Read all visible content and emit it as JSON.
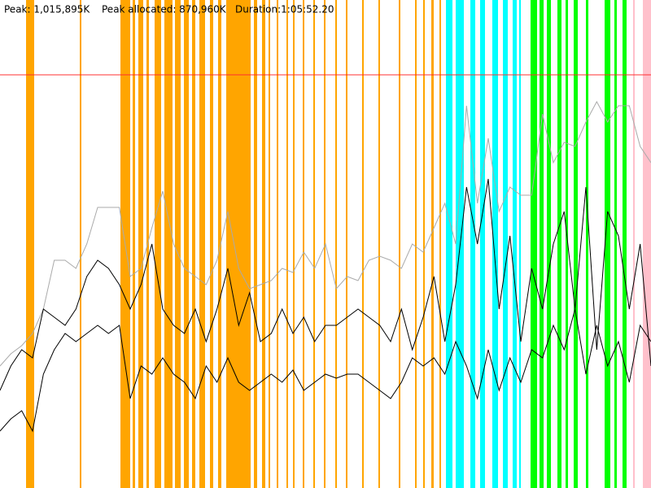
{
  "chart_data": {
    "type": "line",
    "peak": {
      "value": 1015895,
      "label": "Peak: 1,015,895K"
    },
    "peak_color": "#ff3030",
    "peak_allocated": "Peak allocated: 870,960K",
    "duration": "Duration:1:05:52.20",
    "ylim": [
      0,
      1200000
    ],
    "xlim": [
      0,
      800
    ],
    "bands": [
      {
        "start": 32,
        "end": 42,
        "color": "#ffa500"
      },
      {
        "start": 98,
        "end": 100,
        "color": "#ffa500"
      },
      {
        "start": 148,
        "end": 160,
        "color": "#ffa500"
      },
      {
        "start": 163,
        "end": 166,
        "color": "#ffa500"
      },
      {
        "start": 170,
        "end": 176,
        "color": "#ffa500"
      },
      {
        "start": 180,
        "end": 183,
        "color": "#ffa500"
      },
      {
        "start": 190,
        "end": 198,
        "color": "#ffa500"
      },
      {
        "start": 202,
        "end": 212,
        "color": "#ffa500"
      },
      {
        "start": 215,
        "end": 222,
        "color": "#ffa500"
      },
      {
        "start": 226,
        "end": 232,
        "color": "#ffa500"
      },
      {
        "start": 236,
        "end": 240,
        "color": "#ffa500"
      },
      {
        "start": 245,
        "end": 252,
        "color": "#ffa500"
      },
      {
        "start": 258,
        "end": 262,
        "color": "#ffa500"
      },
      {
        "start": 268,
        "end": 272,
        "color": "#ffa500"
      },
      {
        "start": 278,
        "end": 308,
        "color": "#ffa500"
      },
      {
        "start": 312,
        "end": 316,
        "color": "#ffa500"
      },
      {
        "start": 322,
        "end": 326,
        "color": "#ffa500"
      },
      {
        "start": 330,
        "end": 332,
        "color": "#ffa500"
      },
      {
        "start": 340,
        "end": 342,
        "color": "#ffa500"
      },
      {
        "start": 352,
        "end": 354,
        "color": "#ffa500"
      },
      {
        "start": 360,
        "end": 362,
        "color": "#ffa500"
      },
      {
        "start": 372,
        "end": 374,
        "color": "#ffa500"
      },
      {
        "start": 385,
        "end": 387,
        "color": "#ffa500"
      },
      {
        "start": 398,
        "end": 400,
        "color": "#ffa500"
      },
      {
        "start": 412,
        "end": 414,
        "color": "#ffa500"
      },
      {
        "start": 425,
        "end": 427,
        "color": "#ffa500"
      },
      {
        "start": 445,
        "end": 447,
        "color": "#ffa500"
      },
      {
        "start": 465,
        "end": 467,
        "color": "#ffa500"
      },
      {
        "start": 490,
        "end": 492,
        "color": "#ffa500"
      },
      {
        "start": 510,
        "end": 512,
        "color": "#ffa500"
      },
      {
        "start": 520,
        "end": 522,
        "color": "#ffa500"
      },
      {
        "start": 530,
        "end": 533,
        "color": "#ffa500"
      },
      {
        "start": 540,
        "end": 542,
        "color": "#ffa500"
      },
      {
        "start": 548,
        "end": 556,
        "color": "#00ffff"
      },
      {
        "start": 560,
        "end": 570,
        "color": "#00ffff"
      },
      {
        "start": 578,
        "end": 584,
        "color": "#00ffff"
      },
      {
        "start": 590,
        "end": 596,
        "color": "#00ffff"
      },
      {
        "start": 605,
        "end": 612,
        "color": "#00ffff"
      },
      {
        "start": 618,
        "end": 624,
        "color": "#00ffff"
      },
      {
        "start": 630,
        "end": 635,
        "color": "#00ffff"
      },
      {
        "start": 638,
        "end": 640,
        "color": "#00ffff"
      },
      {
        "start": 652,
        "end": 660,
        "color": "#00ff00"
      },
      {
        "start": 663,
        "end": 668,
        "color": "#00ff00"
      },
      {
        "start": 672,
        "end": 677,
        "color": "#00ff00"
      },
      {
        "start": 685,
        "end": 690,
        "color": "#00ff00"
      },
      {
        "start": 695,
        "end": 698,
        "color": "#00ff00"
      },
      {
        "start": 705,
        "end": 710,
        "color": "#00ff00"
      },
      {
        "start": 720,
        "end": 723,
        "color": "#00ff00"
      },
      {
        "start": 743,
        "end": 750,
        "color": "#00ff00"
      },
      {
        "start": 755,
        "end": 758,
        "color": "#00ff00"
      },
      {
        "start": 765,
        "end": 770,
        "color": "#00ff00"
      },
      {
        "start": 778,
        "end": 780,
        "color": "#ffc0cb"
      },
      {
        "start": 790,
        "end": 800,
        "color": "#ffc0cb"
      }
    ],
    "series": [
      {
        "color": "#aaaaaa",
        "values": [
          300000,
          330000,
          350000,
          380000,
          440000,
          560000,
          560000,
          540000,
          600000,
          690000,
          690000,
          690000,
          520000,
          540000,
          640000,
          730000,
          600000,
          540000,
          520000,
          500000,
          560000,
          680000,
          540000,
          490000,
          500000,
          510000,
          540000,
          530000,
          580000,
          540000,
          600000,
          490000,
          520000,
          510000,
          560000,
          570000,
          560000,
          540000,
          600000,
          580000,
          640000,
          700000,
          600000,
          940000,
          700000,
          860000,
          680000,
          740000,
          720000,
          720000,
          920000,
          800000,
          850000,
          840000,
          900000,
          950000,
          900000,
          940000,
          940000,
          840000,
          800000
        ]
      },
      {
        "color": "#000000",
        "values": [
          240000,
          300000,
          340000,
          320000,
          440000,
          420000,
          400000,
          440000,
          520000,
          560000,
          540000,
          500000,
          440000,
          500000,
          600000,
          440000,
          400000,
          380000,
          440000,
          360000,
          440000,
          540000,
          400000,
          480000,
          360000,
          380000,
          440000,
          380000,
          420000,
          360000,
          400000,
          400000,
          420000,
          440000,
          420000,
          400000,
          360000,
          440000,
          340000,
          420000,
          520000,
          360000,
          500000,
          740000,
          600000,
          760000,
          440000,
          620000,
          360000,
          540000,
          440000,
          600000,
          680000,
          440000,
          740000,
          340000,
          680000,
          620000,
          440000,
          600000,
          300000
        ]
      },
      {
        "color": "#000000",
        "values": [
          140000,
          170000,
          190000,
          140000,
          280000,
          340000,
          380000,
          360000,
          380000,
          400000,
          380000,
          400000,
          220000,
          300000,
          280000,
          320000,
          280000,
          260000,
          220000,
          300000,
          260000,
          320000,
          260000,
          240000,
          260000,
          280000,
          260000,
          290000,
          240000,
          260000,
          280000,
          270000,
          280000,
          280000,
          260000,
          240000,
          220000,
          260000,
          320000,
          300000,
          320000,
          280000,
          360000,
          300000,
          220000,
          340000,
          240000,
          320000,
          260000,
          340000,
          320000,
          400000,
          340000,
          440000,
          280000,
          400000,
          300000,
          360000,
          260000,
          400000,
          360000
        ]
      }
    ]
  }
}
